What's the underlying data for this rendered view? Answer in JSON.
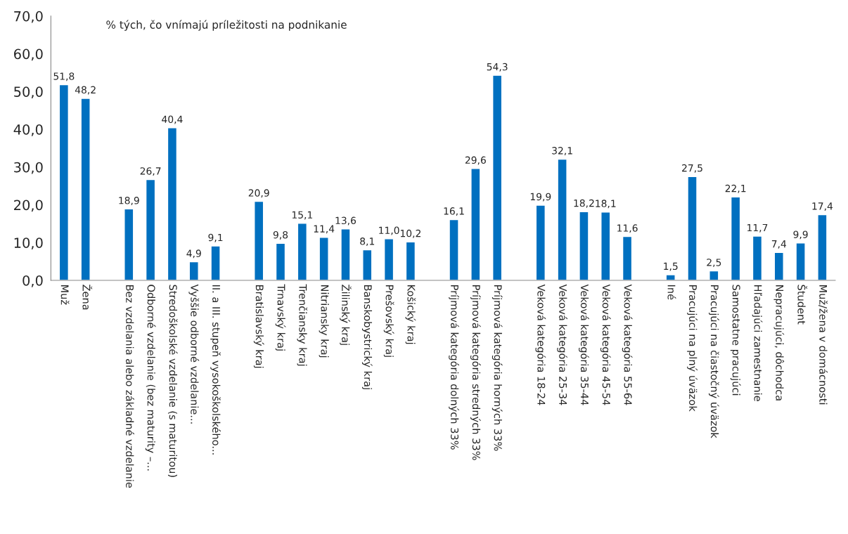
{
  "chart_data": {
    "type": "bar",
    "title": "% tých, čo vnímajú príležitosti na podnikanie",
    "categories": [
      "Muž",
      "Žena",
      null,
      "Bez vzdelania alebo základné vzdelanie",
      "Odborné vzdelanie (bez maturity –...",
      "Stredoškolské vzdelanie (s maturitou)",
      "Vyššie odborné vzdelanie...",
      "II. a III. stupeň vysokoškolského...",
      null,
      "Bratislavský kraj",
      "Trnavský kraj",
      "Trenčiansky kraj",
      "Nitriansky kraj",
      "Žilinský kraj",
      "Banskobystrický kraj",
      "Prešovský kraj",
      "Košický kraj",
      null,
      "Príjmová kategória dolných 33%",
      "Príjmová kategória stredných 33%",
      "Príjmová kategória horných 33%",
      null,
      "Veková kategória 18-24",
      "Veková kategória 25-34",
      "Veková kategória 35-44",
      "Veková kategória 45-54",
      "Veková kategória 55-64",
      null,
      "Iné",
      "Pracujúci na plný úväzok",
      "Pracujúci na čiastočný úväzok",
      "Samostatne pracujúci",
      "Hľadajúci zamestnanie",
      "Nepracujúci, dôchodca",
      "Študent",
      "Muž/žena v domácnosti"
    ],
    "values": [
      51.8,
      48.2,
      null,
      18.9,
      26.7,
      40.4,
      4.9,
      9.1,
      null,
      20.9,
      9.8,
      15.1,
      11.4,
      13.6,
      8.1,
      11.0,
      10.2,
      null,
      16.1,
      29.6,
      54.3,
      null,
      19.9,
      32.1,
      18.2,
      18.1,
      11.6,
      null,
      1.5,
      27.5,
      2.5,
      22.1,
      11.7,
      7.4,
      9.9,
      17.4
    ],
    "value_labels": [
      "51,8",
      "48,2",
      null,
      "18,9",
      "26,7",
      "40,4",
      "4,9",
      "9,1",
      null,
      "20,9",
      "9,8",
      "15,1",
      "11,4",
      "13,6",
      "8,1",
      "11,0",
      "10,2",
      null,
      "16,1",
      "29,6",
      "54,3",
      null,
      "19,9",
      "32,1",
      "18,2",
      "18,1",
      "11,6",
      null,
      "1,5",
      "27,5",
      "2,5",
      "22,1",
      "11,7",
      "7,4",
      "9,9",
      "17,4"
    ],
    "color": "#0070c0",
    "ylim": [
      0,
      70
    ],
    "yticks": [
      {
        "value": 0,
        "label": "0,0"
      },
      {
        "value": 10,
        "label": "10,0"
      },
      {
        "value": 20,
        "label": "20,0"
      },
      {
        "value": 30,
        "label": "30,0"
      },
      {
        "value": 40,
        "label": "40,0"
      },
      {
        "value": 50,
        "label": "50,0"
      },
      {
        "value": 60,
        "label": "60,0"
      },
      {
        "value": 70,
        "label": "70,0"
      }
    ],
    "grid": false,
    "legend": false
  }
}
